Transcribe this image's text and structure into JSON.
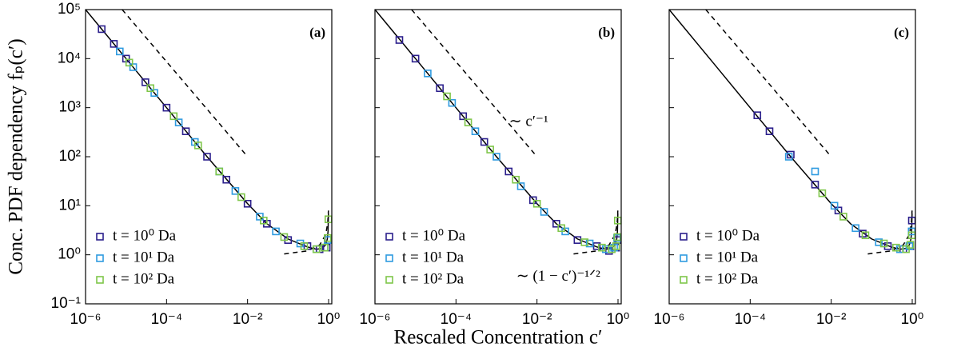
{
  "chart_data": [
    {
      "type": "scatter",
      "panel_label": "(a)",
      "ylabel": "Conc. PDF dependency fₚ(c′)",
      "log_x": true,
      "log_y": true,
      "legend": "lower left",
      "show_ytick_labels": true,
      "xlim": [
        1e-06,
        1.2
      ],
      "ylim": [
        0.1,
        100000
      ],
      "xticks": [
        {
          "value": 1e-06,
          "label": "10⁻⁶"
        },
        {
          "value": 0.0001,
          "label": "10⁻⁴"
        },
        {
          "value": 0.01,
          "label": "10⁻²"
        },
        {
          "value": 1,
          "label": "10⁰"
        }
      ],
      "yticks": [
        {
          "value": 0.1,
          "label": "10⁻¹"
        },
        {
          "value": 1,
          "label": "10⁰"
        },
        {
          "value": 10,
          "label": "10¹"
        },
        {
          "value": 100,
          "label": "10²"
        },
        {
          "value": 1000,
          "label": "10³"
        },
        {
          "value": 10000,
          "label": "10⁴"
        },
        {
          "value": 100000,
          "label": "10⁵"
        }
      ],
      "series": [
        {
          "name": "t = 10⁰ Da",
          "color": "#2b1f8c",
          "x": [
            2.5e-06,
            5e-06,
            1e-05,
            3e-05,
            0.0001,
            0.0003,
            0.001,
            0.003,
            0.01,
            0.03,
            0.1,
            0.3,
            0.6,
            0.9,
            0.98
          ],
          "values": [
            40000,
            20000,
            10000,
            3300,
            1000,
            330,
            100,
            34,
            11,
            4.3,
            2.0,
            1.5,
            1.3,
            1.4,
            2
          ]
        },
        {
          "name": "t = 10¹ Da",
          "color": "#2f9be0",
          "x": [
            7e-06,
            1.5e-05,
            5e-05,
            0.0002,
            0.0005,
            0.002,
            0.005,
            0.02,
            0.05,
            0.2,
            0.5,
            0.8,
            0.95
          ],
          "values": [
            14000,
            6700,
            2000,
            500,
            200,
            50,
            20,
            6,
            3,
            1.7,
            1.3,
            1.4,
            2
          ]
        },
        {
          "name": "t = 10² Da",
          "color": "#7fc64a",
          "x": [
            1.2e-05,
            4e-05,
            0.00015,
            0.0006,
            0.002,
            0.007,
            0.025,
            0.08,
            0.25,
            0.5,
            0.8,
            0.95,
            0.99
          ],
          "values": [
            8300,
            2500,
            670,
            170,
            50,
            15,
            5,
            2.3,
            1.5,
            1.3,
            1.4,
            2.2,
            5.3
          ]
        }
      ],
      "lines": [
        {
          "style": "solid",
          "x": [
            1e-06,
            1e-05,
            0.0001,
            0.001,
            0.01,
            0.03,
            0.1,
            0.3,
            0.5,
            0.7,
            0.85,
            0.93,
            0.97,
            0.99
          ],
          "values": [
            100000,
            10000,
            1000,
            100,
            11,
            4.3,
            2.1,
            1.45,
            1.3,
            1.35,
            1.6,
            2.1,
            3,
            7
          ]
        },
        {
          "style": "dashed",
          "x": [
            8e-06,
            0.01
          ],
          "values": [
            100000,
            100
          ]
        },
        {
          "style": "dashed",
          "x": [
            0.08,
            0.3,
            0.6,
            0.85,
            0.95,
            0.99
          ],
          "values": [
            1.04,
            1.2,
            1.58,
            2.58,
            4.47,
            8
          ]
        }
      ]
    },
    {
      "type": "scatter",
      "panel_label": "(b)",
      "xlabel": "Rescaled Concentration c′",
      "annotations": [
        "∼ c′⁻¹",
        "∼ (1 − c′)⁻¹ᐟ²"
      ],
      "log_x": true,
      "log_y": true,
      "legend": "lower left",
      "show_ytick_labels": false,
      "xlim": [
        1e-06,
        1.2
      ],
      "ylim": [
        0.1,
        100000
      ],
      "xticks": [
        {
          "value": 1e-06,
          "label": "10⁻⁶"
        },
        {
          "value": 0.0001,
          "label": "10⁻⁴"
        },
        {
          "value": 0.01,
          "label": "10⁻²"
        },
        {
          "value": 1,
          "label": "10⁰"
        }
      ],
      "yticks": [
        0.1,
        1,
        10,
        100,
        1000,
        10000,
        100000
      ],
      "series": [
        {
          "name": "t = 10⁰ Da",
          "color": "#2b1f8c",
          "x": [
            4e-06,
            1e-05,
            4e-05,
            0.00015,
            0.0005,
            0.002,
            0.008,
            0.03,
            0.1,
            0.3,
            0.6,
            0.9,
            0.98
          ],
          "values": [
            24000,
            10000,
            2500,
            670,
            200,
            50,
            13,
            4.3,
            2.0,
            1.5,
            1.2,
            1.4,
            2
          ]
        },
        {
          "name": "t = 10¹ Da",
          "color": "#2f9be0",
          "x": [
            2e-05,
            8e-05,
            0.0003,
            0.001,
            0.004,
            0.015,
            0.05,
            0.2,
            0.5,
            0.8,
            0.95
          ],
          "values": [
            5000,
            1250,
            330,
            100,
            25,
            7.5,
            3,
            1.7,
            1.3,
            1.4,
            2.2
          ]
        },
        {
          "name": "t = 10² Da",
          "color": "#7fc64a",
          "x": [
            6e-05,
            0.0002,
            0.0007,
            0.003,
            0.01,
            0.04,
            0.15,
            0.4,
            0.7,
            0.9,
            0.97,
            0.99
          ],
          "values": [
            1700,
            500,
            140,
            34,
            11,
            3.5,
            1.8,
            1.4,
            1.3,
            1.5,
            2.3,
            5
          ]
        }
      ],
      "lines": [
        {
          "style": "solid",
          "x": [
            1e-06,
            1e-05,
            0.0001,
            0.001,
            0.01,
            0.03,
            0.1,
            0.3,
            0.5,
            0.7,
            0.85,
            0.93,
            0.97,
            0.99
          ],
          "values": [
            100000,
            10000,
            1000,
            100,
            11,
            4.3,
            2.1,
            1.45,
            1.3,
            1.35,
            1.6,
            2.1,
            3,
            7
          ]
        },
        {
          "style": "dashed",
          "x": [
            8e-06,
            0.01
          ],
          "values": [
            100000,
            100
          ]
        },
        {
          "style": "dashed",
          "x": [
            0.08,
            0.3,
            0.6,
            0.85,
            0.95,
            0.99
          ],
          "values": [
            1.04,
            1.2,
            1.58,
            2.58,
            4.47,
            8
          ]
        }
      ]
    },
    {
      "type": "scatter",
      "panel_label": "(c)",
      "log_x": true,
      "log_y": true,
      "legend": "lower left",
      "show_ytick_labels": false,
      "xlim": [
        1e-06,
        1.2
      ],
      "ylim": [
        0.1,
        100000
      ],
      "xticks": [
        {
          "value": 1e-06,
          "label": "10⁻⁶"
        },
        {
          "value": 0.0001,
          "label": "10⁻⁴"
        },
        {
          "value": 0.01,
          "label": "10⁻²"
        },
        {
          "value": 1,
          "label": "10⁰"
        }
      ],
      "yticks": [
        0.1,
        1,
        10,
        100,
        1000,
        10000,
        100000
      ],
      "series": [
        {
          "name": "t = 10⁰ Da",
          "color": "#2b1f8c",
          "x": [
            0.00015,
            0.0003,
            0.001,
            0.004,
            0.015,
            0.06,
            0.25,
            0.6,
            0.9,
            0.98
          ],
          "values": [
            700,
            330,
            110,
            27,
            8,
            2.7,
            1.5,
            1.3,
            1.5,
            5
          ]
        },
        {
          "name": "t = 10¹ Da",
          "color": "#2f9be0",
          "x": [
            0.0009,
            0.004,
            0.012,
            0.04,
            0.15,
            0.5,
            0.85,
            0.97
          ],
          "values": [
            100,
            50,
            10,
            3.5,
            1.8,
            1.3,
            1.5,
            3
          ]
        },
        {
          "name": "t = 10² Da",
          "color": "#7fc64a",
          "x": [
            0.006,
            0.02,
            0.07,
            0.2,
            0.4,
            0.7,
            0.9,
            0.98
          ],
          "values": [
            18,
            6,
            2.5,
            1.7,
            1.4,
            1.3,
            1.6,
            2.5
          ]
        }
      ],
      "lines": [
        {
          "style": "solid",
          "x": [
            1e-06,
            1e-05,
            0.0001,
            0.001,
            0.01,
            0.03,
            0.1,
            0.3,
            0.5,
            0.7,
            0.85,
            0.93,
            0.97,
            0.99
          ],
          "values": [
            100000,
            10000,
            1000,
            100,
            11,
            4.3,
            2.1,
            1.45,
            1.3,
            1.35,
            1.6,
            2.1,
            3,
            7
          ]
        },
        {
          "style": "dashed",
          "x": [
            8e-06,
            0.01
          ],
          "values": [
            100000,
            100
          ]
        },
        {
          "style": "dashed",
          "x": [
            0.08,
            0.3,
            0.6,
            0.85,
            0.95,
            0.99
          ],
          "values": [
            1.04,
            1.2,
            1.58,
            2.58,
            4.47,
            8
          ]
        }
      ]
    }
  ]
}
